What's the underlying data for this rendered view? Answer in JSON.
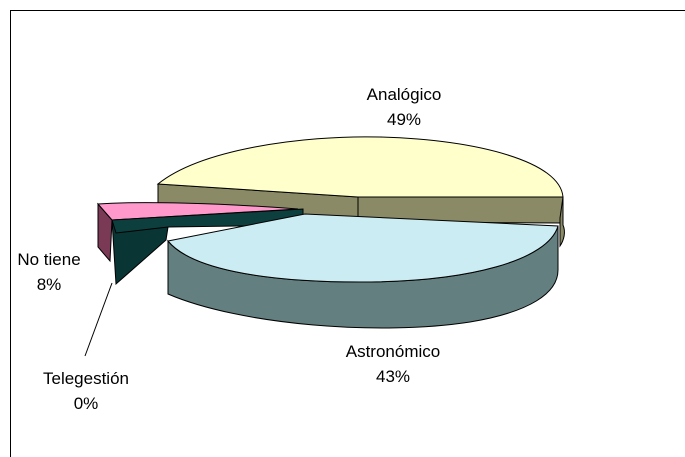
{
  "chart_data": {
    "type": "pie",
    "title": "",
    "categories": [
      "Analógico",
      "Astronómico",
      "Telegestión",
      "No tiene"
    ],
    "values": [
      49,
      43,
      0,
      8
    ],
    "labels": [
      "Analógico",
      "Astronómico",
      "Telegestión",
      "No tiene"
    ],
    "percent_labels": [
      "49%",
      "43%",
      "0%",
      "8%"
    ],
    "colors": {
      "Analógico": "#FFFFCC",
      "Astronómico": "#CCECF4",
      "Telegestión": "#0E3F3F",
      "No tiene": "#FF99CC"
    },
    "side_colors": {
      "Analógico": "#8A8A66",
      "Astronómico": "#637F7F",
      "Telegestión": "#0A3535",
      "No tiene": "#7A3A55"
    },
    "style": "3d-exploded-pie"
  }
}
